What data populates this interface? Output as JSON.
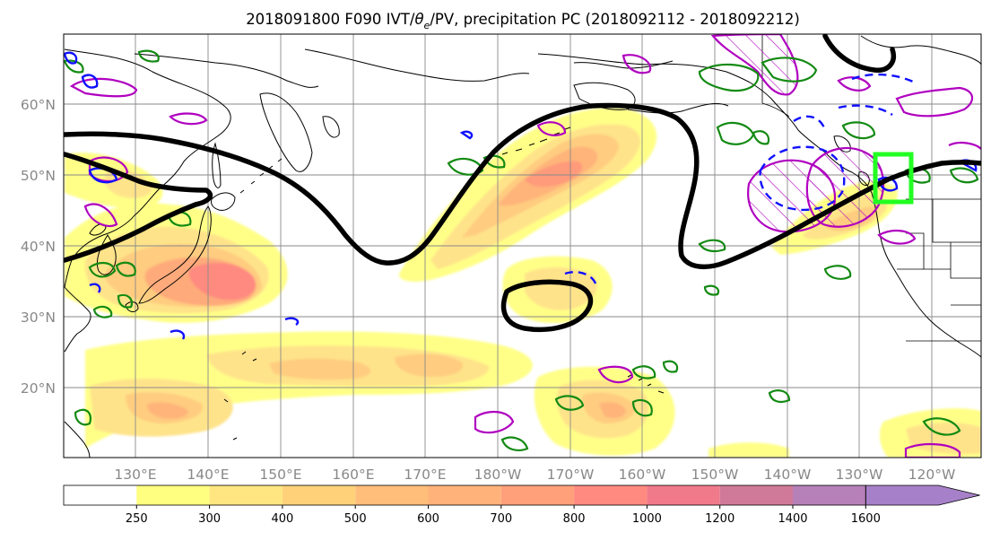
{
  "title": {
    "prefix": "2018091800 F090 IVT/",
    "theta": "θ",
    "theta_sub": "e",
    "suffix": "/PV, precipitation PC (2018092112 - 2018092212)"
  },
  "map": {
    "lon_ticks": [
      "130°E",
      "140°E",
      "150°E",
      "160°E",
      "170°E",
      "180°W",
      "170°W",
      "160°W",
      "150°W",
      "140°W",
      "130°W",
      "120°W"
    ],
    "lat_ticks": [
      "60°N",
      "50°N",
      "40°N",
      "30°N",
      "20°N"
    ],
    "grid": "on",
    "colors": {
      "jet_contour": "#000000",
      "pv_contour": "#b000c0",
      "theta_e_contour": "#138a13",
      "precip_contour": "#1010ff",
      "target_box": "#22ff22"
    }
  },
  "colorbar": {
    "labels": [
      "250",
      "300",
      "400",
      "500",
      "600",
      "700",
      "800",
      "1000",
      "1200",
      "1400",
      "1600"
    ],
    "colors": [
      "#ffffff",
      "#ffff80",
      "#ffe680",
      "#ffd27a",
      "#ffbe7a",
      "#ffb27a",
      "#ffa07a",
      "#ff8a80",
      "#f07a8a",
      "#d07a9a",
      "#b680b8",
      "#a680c8"
    ],
    "extend": "max"
  }
}
